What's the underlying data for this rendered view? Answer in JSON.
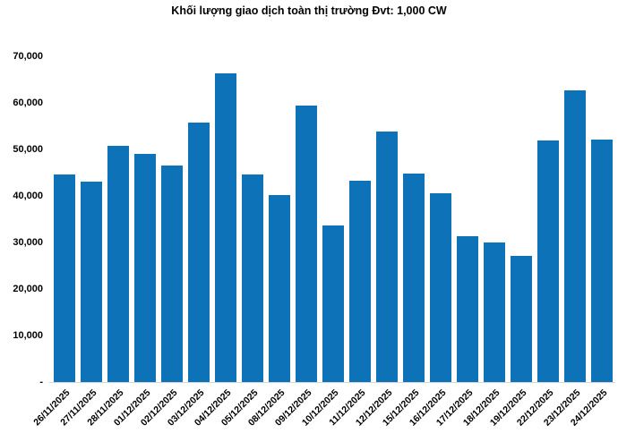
{
  "chart_data": {
    "type": "bar",
    "title": "Khối lượng giao dịch toàn thị trường Đvt: 1,000 CW",
    "categories": [
      "26/11/2025",
      "27/11/2025",
      "28/11/2025",
      "01/12/2025",
      "02/12/2025",
      "03/12/2025",
      "04/12/2025",
      "05/12/2025",
      "08/12/2025",
      "09/12/2025",
      "10/12/2025",
      "11/12/2025",
      "12/12/2025",
      "15/12/2025",
      "16/12/2025",
      "17/12/2025",
      "18/12/2025",
      "19/12/2025",
      "22/12/2025",
      "23/12/2025",
      "24/12/2025"
    ],
    "values": [
      44600,
      43100,
      50800,
      49000,
      46600,
      55800,
      66300,
      44600,
      40200,
      59400,
      33700,
      43300,
      53800,
      44900,
      40500,
      31300,
      30000,
      27100,
      51900,
      62600,
      52100
    ],
    "xlabel": "",
    "ylabel": "",
    "ylim": [
      0,
      70000
    ],
    "ytick_interval": 10000,
    "ytick_labels_top_to_bottom": [
      "70,000",
      "60,000",
      "50,000",
      "40,000",
      "30,000",
      "20,000",
      "10,000",
      "-"
    ],
    "zero_tick_label": "-",
    "grid": false,
    "legend": false,
    "bar_color": "#0e72b9",
    "axis_line_color": "#d6d6d6",
    "text_color": "#000000"
  }
}
